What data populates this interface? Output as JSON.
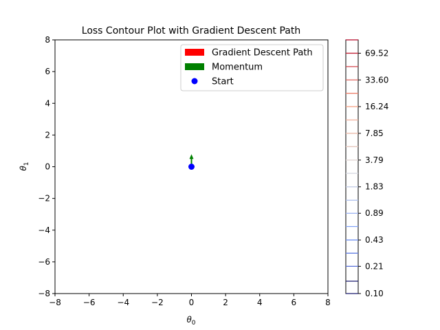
{
  "chart_data": {
    "type": "contour",
    "title": "Loss Contour Plot with Gradient Descent Path",
    "xlabel": "θ",
    "xlabel_sub": "0",
    "ylabel": "θ",
    "ylabel_sub": "1",
    "xlim": [
      -8,
      8
    ],
    "ylim": [
      -8,
      8
    ],
    "x_ticks": [
      -8,
      -6,
      -4,
      -2,
      0,
      2,
      4,
      6,
      8
    ],
    "y_ticks": [
      -8,
      -6,
      -4,
      -2,
      0,
      2,
      4,
      6,
      8
    ],
    "x_tick_labels": [
      "−8",
      "−6",
      "−4",
      "−2",
      "0",
      "2",
      "4",
      "6",
      "8"
    ],
    "y_tick_labels": [
      "−8",
      "−6",
      "−4",
      "−2",
      "0",
      "2",
      "4",
      "6",
      "8"
    ],
    "grid": false,
    "legend_position": "upper right",
    "legend": [
      {
        "label": "Gradient Descent Path",
        "color": "#ff0000",
        "marker": "rect"
      },
      {
        "label": "Momentum",
        "color": "#008000",
        "marker": "rect"
      },
      {
        "label": "Start",
        "color": "#0000ff",
        "marker": "circle"
      }
    ],
    "start_point": {
      "x": 0,
      "y": 0,
      "color": "#0000ff"
    },
    "momentum_arrow": {
      "x": 0,
      "y": 0.15,
      "dx": 0,
      "dy": 0.6,
      "color": "#008000"
    },
    "colorbar": {
      "scale": "log",
      "range": [
        0.1,
        100
      ],
      "tick_labels": [
        "0.10",
        "0.21",
        "0.43",
        "0.89",
        "1.83",
        "3.79",
        "7.85",
        "16.24",
        "33.60",
        "69.52"
      ],
      "tick_values": [
        0.1,
        0.21,
        0.43,
        0.89,
        1.83,
        3.79,
        7.85,
        16.24,
        33.6,
        69.52
      ],
      "levels": [
        0.1,
        0.14,
        0.21,
        0.3,
        0.43,
        0.62,
        0.89,
        1.27,
        1.83,
        2.64,
        3.79,
        5.46,
        7.85,
        11.29,
        16.24,
        23.36,
        33.6,
        48.33,
        69.52,
        100.0
      ],
      "colormap": "coolwarm"
    }
  }
}
